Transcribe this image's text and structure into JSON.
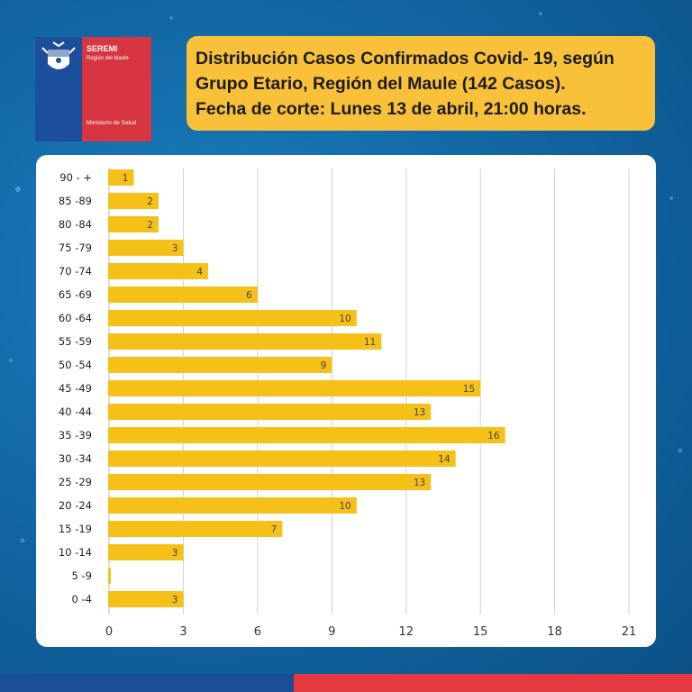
{
  "logo": {
    "org_title": "SEREMI",
    "org_region": "Región del Maule",
    "ministry": "Ministerio de Salud"
  },
  "title": {
    "lines": [
      "Distribución  Casos Confirmados Covid- 19, según",
      "Grupo Etario, Región del Maule (142 Casos).",
      "Fecha de corte: Lunes 13 de abril, 21:00 horas."
    ]
  },
  "colors": {
    "bar": "#f5c018",
    "title_bg": "#f9c13a",
    "grid": "#d0d0d0",
    "accent_blue": "#1c4e98",
    "accent_red": "#e23a3f"
  },
  "chart_data": {
    "type": "bar",
    "orientation": "horizontal",
    "categories": [
      "90 - +",
      "85 -89",
      "80 -84",
      "75 -79",
      "70 -74",
      "65 -69",
      "60 -64",
      "55 -59",
      "50 -54",
      "45 -49",
      "40 -44",
      "35 -39",
      "30 -34",
      "25 -29",
      "20 -24",
      "15 -19",
      "10 -14",
      "5 -9",
      "0 -4"
    ],
    "values": [
      1,
      2,
      2,
      3,
      4,
      6,
      10,
      11,
      9,
      15,
      13,
      16,
      14,
      13,
      10,
      7,
      3,
      0,
      3
    ],
    "value_labels": [
      "1",
      "2",
      "2",
      "3",
      "4",
      "6",
      "10",
      "11",
      "9",
      "15",
      "13",
      "16",
      "14",
      "13",
      "10",
      "7",
      "3",
      "",
      "3"
    ],
    "xlim": [
      0,
      21
    ],
    "xticks": [
      "0",
      "3",
      "6",
      "9",
      "12",
      "15",
      "18",
      "21"
    ],
    "grid": true,
    "title": "",
    "xlabel": "",
    "ylabel": ""
  }
}
